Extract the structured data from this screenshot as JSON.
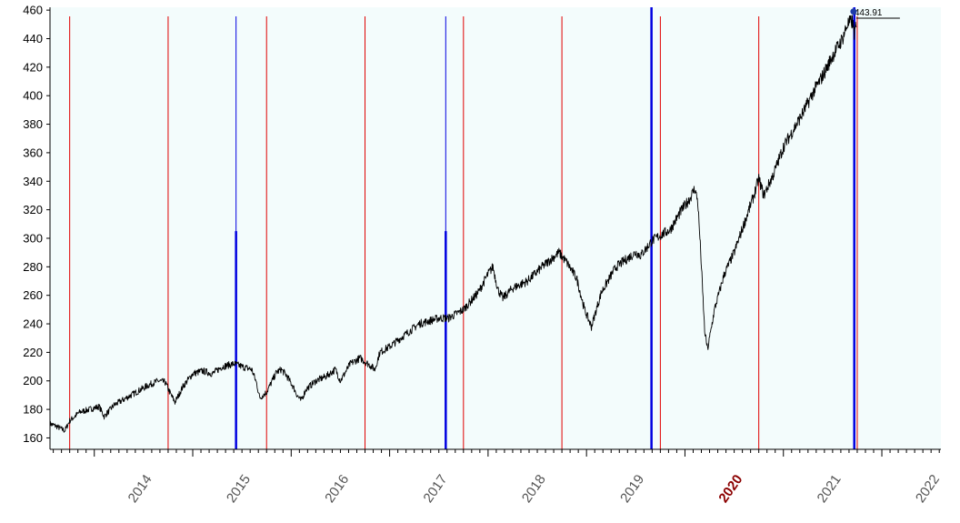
{
  "chart_data": {
    "type": "line",
    "title": "",
    "xlabel": "",
    "ylabel": "",
    "xlim": [
      2013.55,
      2022.6
    ],
    "ylim": [
      152,
      462
    ],
    "grid": false,
    "y_ticks": [
      160,
      180,
      200,
      220,
      240,
      260,
      280,
      300,
      320,
      340,
      360,
      380,
      400,
      420,
      440,
      460
    ],
    "x_ticks": [
      {
        "label": "2014",
        "x": 2014.0,
        "highlight": false
      },
      {
        "label": "2015",
        "x": 2015.0,
        "highlight": false
      },
      {
        "label": "2016",
        "x": 2016.0,
        "highlight": false
      },
      {
        "label": "2017",
        "x": 2017.0,
        "highlight": false
      },
      {
        "label": "2018",
        "x": 2018.0,
        "highlight": false
      },
      {
        "label": "2019",
        "x": 2019.0,
        "highlight": false
      },
      {
        "label": "2020",
        "x": 2020.0,
        "highlight": true
      },
      {
        "label": "2021",
        "x": 2021.0,
        "highlight": false
      },
      {
        "label": "2022",
        "x": 2022.0,
        "highlight": false
      }
    ],
    "last_value_label": "443.91",
    "colors": {
      "background": "#f3fcfc",
      "line": "#000000",
      "red_marker": "#e00000",
      "blue_marker": "#0000e0",
      "endpoint": "#1e3ca8"
    },
    "red_vlines": [
      2013.75,
      2014.75,
      2015.75,
      2016.75,
      2017.75,
      2018.75,
      2019.75,
      2020.75,
      2021.75
    ],
    "blue_vlines": [
      {
        "x": 2015.44,
        "y": 305
      },
      {
        "x": 2017.57,
        "y": 305
      },
      {
        "x": 2019.66,
        "y": 462
      },
      {
        "x": 2021.72,
        "y": 462
      }
    ],
    "series": [
      {
        "x": [
          2013.55,
          2013.62,
          2013.7,
          2013.75,
          2013.85,
          2013.95,
          2014.05,
          2014.1,
          2014.2,
          2014.3,
          2014.45,
          2014.55,
          2014.65,
          2014.72,
          2014.78,
          2014.82,
          2014.9,
          2015.0,
          2015.1,
          2015.2,
          2015.3,
          2015.42,
          2015.5,
          2015.6,
          2015.65,
          2015.68,
          2015.75,
          2015.85,
          2015.9,
          2015.95,
          2016.02,
          2016.06,
          2016.1,
          2016.15,
          2016.25,
          2016.35,
          2016.45,
          2016.5,
          2016.6,
          2016.7,
          2016.8,
          2016.85,
          2016.9,
          2017.0,
          2017.15,
          2017.3,
          2017.5,
          2017.6,
          2017.75,
          2017.9,
          2018.0,
          2018.05,
          2018.1,
          2018.15,
          2018.25,
          2018.4,
          2018.55,
          2018.72,
          2018.8,
          2018.9,
          2018.98,
          2019.05,
          2019.15,
          2019.3,
          2019.4,
          2019.5,
          2019.55,
          2019.62,
          2019.66,
          2019.75,
          2019.85,
          2019.95,
          2020.05,
          2020.1,
          2020.13,
          2020.16,
          2020.2,
          2020.23,
          2020.3,
          2020.4,
          2020.5,
          2020.6,
          2020.65,
          2020.7,
          2020.75,
          2020.8,
          2020.9,
          2021.0,
          2021.1,
          2021.2,
          2021.3,
          2021.4,
          2021.5,
          2021.6,
          2021.65,
          2021.7,
          2021.72,
          2021.74
        ],
        "y": [
          170,
          168,
          165,
          172,
          178,
          180,
          182,
          175,
          183,
          187,
          193,
          197,
          200,
          199,
          190,
          185,
          196,
          205,
          207,
          205,
          210,
          212,
          210,
          208,
          198,
          188,
          192,
          206,
          208,
          204,
          196,
          190,
          186,
          194,
          200,
          203,
          208,
          200,
          212,
          216,
          211,
          208,
          220,
          224,
          232,
          240,
          244,
          244,
          250,
          262,
          275,
          280,
          264,
          258,
          265,
          270,
          280,
          290,
          283,
          272,
          250,
          238,
          262,
          280,
          285,
          290,
          288,
          294,
          298,
          302,
          306,
          318,
          328,
          335,
          326,
          290,
          235,
          222,
          250,
          275,
          290,
          310,
          320,
          330,
          342,
          330,
          345,
          364,
          376,
          388,
          402,
          414,
          428,
          440,
          450,
          452,
          444,
          448
        ]
      }
    ]
  }
}
